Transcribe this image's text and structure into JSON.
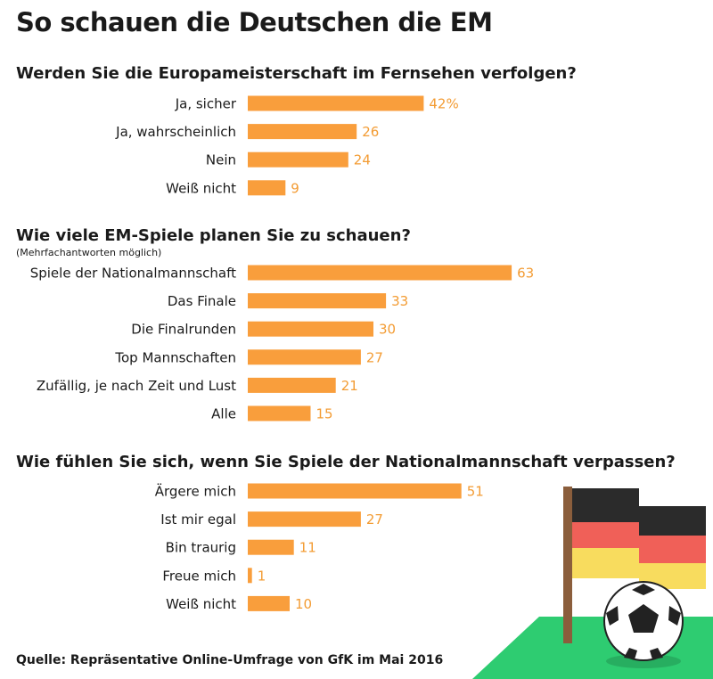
{
  "title": "So schauen die Deutschen die EM",
  "source": "Quelle: Repräsentative Online-Umfrage von GfK im Mai 2016",
  "colors": {
    "bar": "#f99e3c",
    "value_text": "#f39c34"
  },
  "chart_data": [
    {
      "type": "bar",
      "orientation": "horizontal",
      "title": "Werden Sie die Europameisterschaft im Fernsehen verfolgen?",
      "note": "",
      "categories": [
        "Ja, sicher",
        "Ja, wahrscheinlich",
        "Nein",
        "Weiß nicht"
      ],
      "values": [
        42,
        26,
        24,
        9
      ],
      "value_labels": [
        "42%",
        "26",
        "24",
        "9"
      ],
      "unit": "%"
    },
    {
      "type": "bar",
      "orientation": "horizontal",
      "title": "Wie viele EM-Spiele planen Sie zu schauen?",
      "note": "(Mehrfachantworten möglich)",
      "categories": [
        "Spiele der Nationalmannschaft",
        "Das Finale",
        "Die Finalrunden",
        "Top Mannschaften",
        "Zufällig, je nach Zeit und Lust",
        "Alle"
      ],
      "values": [
        63,
        33,
        30,
        27,
        21,
        15
      ],
      "value_labels": [
        "63",
        "33",
        "30",
        "27",
        "21",
        "15"
      ],
      "unit": "%"
    },
    {
      "type": "bar",
      "orientation": "horizontal",
      "title": "Wie fühlen Sie sich, wenn Sie Spiele der Nationalmannschaft verpassen?",
      "note": "",
      "categories": [
        "Ärgere mich",
        "Ist mir egal",
        "Bin traurig",
        "Freue mich",
        "Weiß nicht"
      ],
      "values": [
        51,
        27,
        11,
        1,
        10
      ],
      "value_labels": [
        "51",
        "27",
        "11",
        "1",
        "10"
      ],
      "unit": "%"
    }
  ]
}
